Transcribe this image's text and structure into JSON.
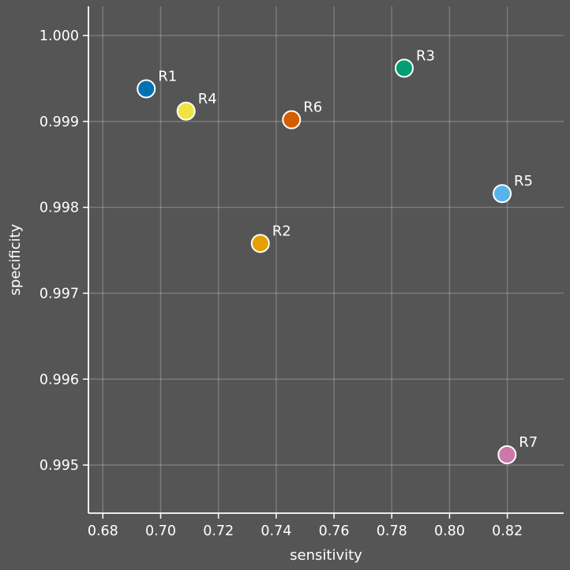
{
  "chart_data": {
    "type": "scatter",
    "title": "",
    "xlabel": "sensitivity",
    "ylabel": "specificity",
    "xlim": [
      0.675,
      0.8395
    ],
    "ylim": [
      0.99444,
      1.00034
    ],
    "xticks": [
      0.68,
      0.7,
      0.72,
      0.74,
      0.76,
      0.78,
      0.8,
      0.82
    ],
    "xtick_labels": [
      "0.68",
      "0.70",
      "0.72",
      "0.74",
      "0.76",
      "0.78",
      "0.80",
      "0.82"
    ],
    "yticks": [
      0.995,
      0.996,
      0.997,
      0.998,
      0.999,
      1.0
    ],
    "ytick_labels": [
      "0.995",
      "0.996",
      "0.997",
      "0.998",
      "0.999",
      "1.000"
    ],
    "grid": true,
    "points": [
      {
        "label": "R1",
        "x": 0.695,
        "y": 0.99938,
        "color": "#0072B2"
      },
      {
        "label": "R2",
        "x": 0.7345,
        "y": 0.99758,
        "color": "#E69F00"
      },
      {
        "label": "R3",
        "x": 0.7843,
        "y": 0.99962,
        "color": "#009E73"
      },
      {
        "label": "R4",
        "x": 0.7088,
        "y": 0.99912,
        "color": "#F0E442"
      },
      {
        "label": "R5",
        "x": 0.8182,
        "y": 0.99816,
        "color": "#56B4E9"
      },
      {
        "label": "R6",
        "x": 0.7453,
        "y": 0.99902,
        "color": "#D55E00"
      },
      {
        "label": "R7",
        "x": 0.8199,
        "y": 0.99512,
        "color": "#CC79A7"
      }
    ]
  }
}
